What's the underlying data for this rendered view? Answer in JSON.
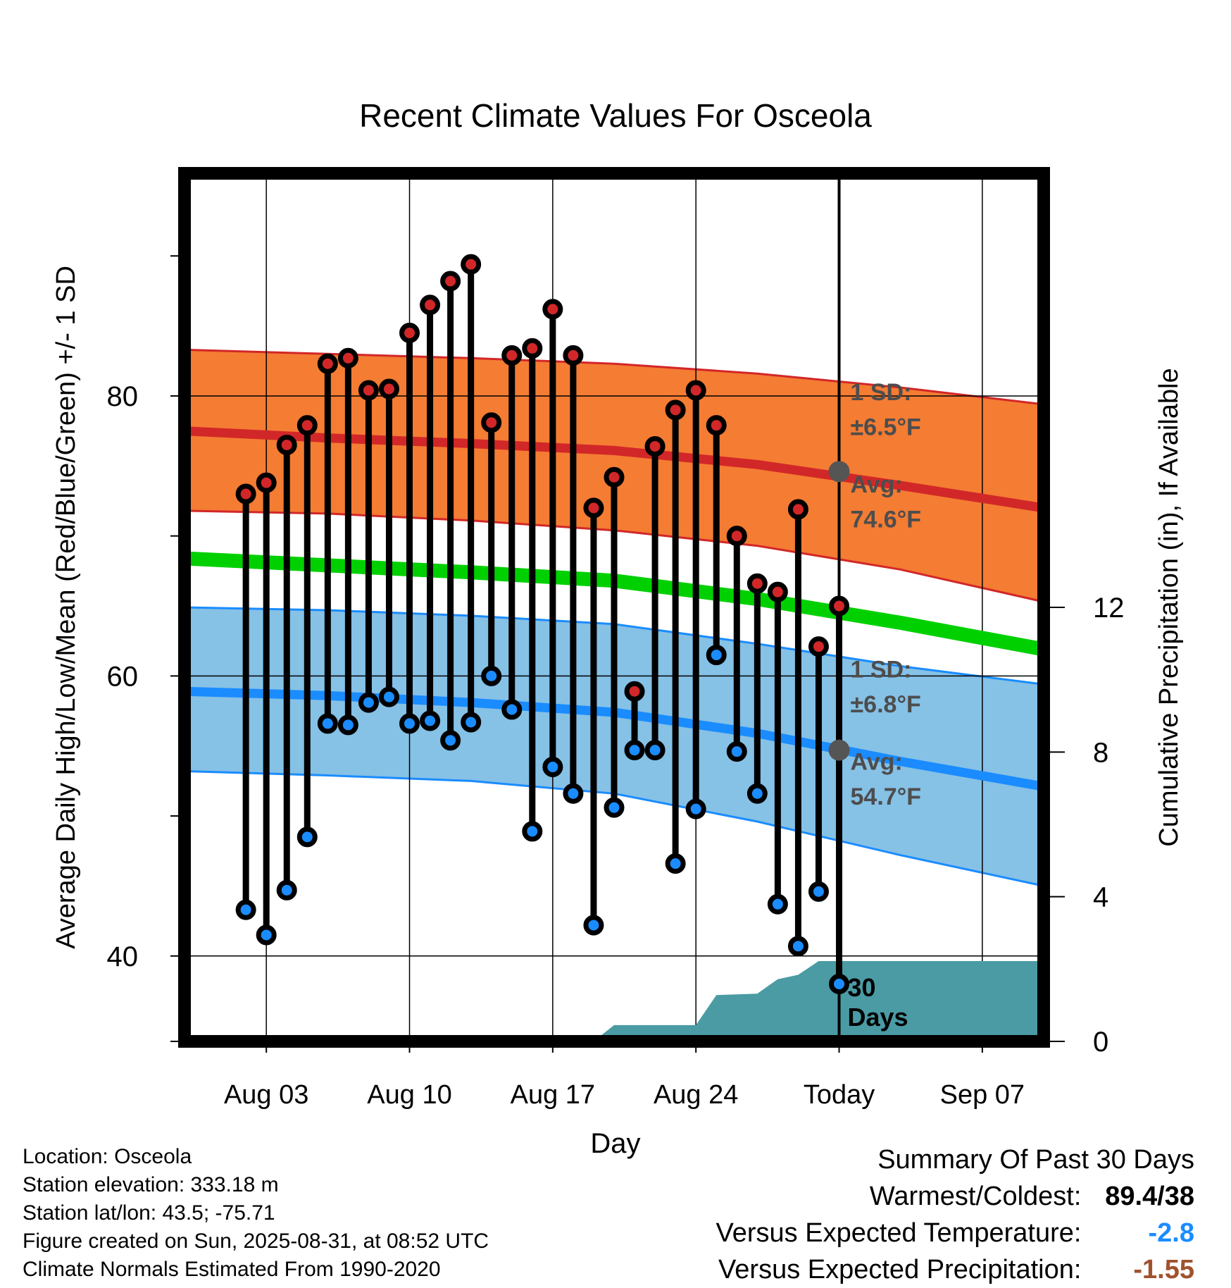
{
  "chart_data": {
    "type": "line",
    "title": "Recent Climate Values For Osceola",
    "xlabel": "Day",
    "ylabel": "Average Daily High/Low/Mean (Red/Blue/Green) +/- 1 SD",
    "ylabel_right": "Cumulative Precipitation (in), If Available",
    "x_range": [
      "2025-07-30",
      "2025-09-10"
    ],
    "ylim": [
      33.9,
      95.9
    ],
    "ylim_right": [
      0,
      24
    ],
    "grid": true,
    "x_ticks": [
      {
        "date": "2025-08-03",
        "label": "Aug 03"
      },
      {
        "date": "2025-08-10",
        "label": "Aug 10"
      },
      {
        "date": "2025-08-17",
        "label": "Aug 17"
      },
      {
        "date": "2025-08-24",
        "label": "Aug 24"
      },
      {
        "date": "2025-08-31",
        "label": "Today"
      },
      {
        "date": "2025-09-07",
        "label": "Sep 07"
      }
    ],
    "y_ticks": [
      {
        "value": 40,
        "label": "40"
      },
      {
        "value": 60,
        "label": "60"
      },
      {
        "value": 80,
        "label": "80"
      }
    ],
    "y_minor_ticks": [
      50,
      70,
      90
    ],
    "y_right_ticks": [
      {
        "value": 0,
        "label": "0"
      },
      {
        "value": 4,
        "label": "4"
      },
      {
        "value": 8,
        "label": "8"
      },
      {
        "value": 12,
        "label": "12"
      }
    ],
    "today": "2025-08-31",
    "daily": [
      {
        "date": "2025-08-02",
        "high": 73.0,
        "low": 43.3
      },
      {
        "date": "2025-08-03",
        "high": 73.8,
        "low": 41.5
      },
      {
        "date": "2025-08-04",
        "high": 76.5,
        "low": 44.7
      },
      {
        "date": "2025-08-05",
        "high": 77.9,
        "low": 48.5
      },
      {
        "date": "2025-08-06",
        "high": 82.3,
        "low": 56.6
      },
      {
        "date": "2025-08-07",
        "high": 82.7,
        "low": 56.5
      },
      {
        "date": "2025-08-08",
        "high": 80.4,
        "low": 58.1
      },
      {
        "date": "2025-08-09",
        "high": 80.5,
        "low": 58.5
      },
      {
        "date": "2025-08-10",
        "high": 84.5,
        "low": 56.6
      },
      {
        "date": "2025-08-11",
        "high": 86.5,
        "low": 56.8
      },
      {
        "date": "2025-08-12",
        "high": 88.2,
        "low": 55.4
      },
      {
        "date": "2025-08-13",
        "high": 89.4,
        "low": 56.7
      },
      {
        "date": "2025-08-14",
        "high": 78.1,
        "low": 60.0
      },
      {
        "date": "2025-08-15",
        "high": 82.9,
        "low": 57.6
      },
      {
        "date": "2025-08-16",
        "high": 83.4,
        "low": 48.9
      },
      {
        "date": "2025-08-17",
        "high": 86.2,
        "low": 53.5
      },
      {
        "date": "2025-08-18",
        "high": 82.9,
        "low": 51.6
      },
      {
        "date": "2025-08-19",
        "high": 72.0,
        "low": 42.2
      },
      {
        "date": "2025-08-20",
        "high": 74.2,
        "low": 50.6
      },
      {
        "date": "2025-08-21",
        "high": 58.9,
        "low": 54.7
      },
      {
        "date": "2025-08-22",
        "high": 76.4,
        "low": 54.7
      },
      {
        "date": "2025-08-23",
        "high": 79.0,
        "low": 46.6
      },
      {
        "date": "2025-08-24",
        "high": 80.4,
        "low": 50.5
      },
      {
        "date": "2025-08-25",
        "high": 77.9,
        "low": 61.5
      },
      {
        "date": "2025-08-26",
        "high": 70.0,
        "low": 54.6
      },
      {
        "date": "2025-08-27",
        "high": 66.6,
        "low": 51.6
      },
      {
        "date": "2025-08-28",
        "high": 66.0,
        "low": 43.7
      },
      {
        "date": "2025-08-29",
        "high": 71.9,
        "low": 40.7
      },
      {
        "date": "2025-08-30",
        "high": 62.1,
        "low": 44.6
      },
      {
        "date": "2025-08-31",
        "high": 65.0,
        "low": 38.0
      }
    ],
    "normals": {
      "dates": [
        "2025-07-30",
        "2025-08-06",
        "2025-08-13",
        "2025-08-20",
        "2025-08-27",
        "2025-09-03",
        "2025-09-10"
      ],
      "high_mean": [
        77.5,
        77.0,
        76.6,
        76.1,
        75.1,
        73.6,
        72.0
      ],
      "high_upper": [
        83.3,
        83.0,
        82.7,
        82.3,
        81.6,
        80.6,
        79.4
      ],
      "high_lower": [
        71.8,
        71.6,
        71.1,
        70.4,
        69.3,
        67.6,
        65.3
      ],
      "mean": [
        68.4,
        67.9,
        67.4,
        66.8,
        65.5,
        63.8,
        61.9
      ],
      "low_mean": [
        58.9,
        58.6,
        58.1,
        57.4,
        55.9,
        53.9,
        52.1
      ],
      "low_upper": [
        64.9,
        64.7,
        64.3,
        63.7,
        62.3,
        60.7,
        59.4
      ],
      "low_lower": [
        53.2,
        52.9,
        52.5,
        51.6,
        49.6,
        47.2,
        45.0
      ]
    },
    "precip_cumulative": {
      "dates": [
        "2025-08-19",
        "2025-08-20",
        "2025-08-23",
        "2025-08-24",
        "2025-08-25",
        "2025-08-27",
        "2025-08-28",
        "2025-08-29",
        "2025-08-30",
        "2025-09-10"
      ],
      "values": [
        0.0,
        0.45,
        0.45,
        0.45,
        1.28,
        1.32,
        1.72,
        1.84,
        2.22,
        2.22
      ]
    },
    "annotations": {
      "high_sd": {
        "line1": "1 SD:",
        "line2": "±6.5°F"
      },
      "high_avg": {
        "line1": "Avg:",
        "line2": "74.6°F",
        "value": 74.6
      },
      "low_sd": {
        "line1": "1 SD:",
        "line2": "±6.8°F"
      },
      "low_avg": {
        "line1": "Avg:",
        "line2": "54.7°F",
        "value": 54.7
      },
      "precip_days": {
        "line1": "30",
        "line2": "Days"
      }
    }
  },
  "colors": {
    "high_band": "#f47c33",
    "high_line": "#d22728",
    "low_band": "#86c1e6",
    "low_line": "#1a8cff",
    "mean_line": "#00d000",
    "precip_fill": "#4a9ba4",
    "high_dot": "#d22728",
    "low_dot": "#1a8cff",
    "annotation_text": "#4d4d4d"
  },
  "footer": {
    "location": "Location: Osceola",
    "elevation": "Station elevation: 333.18 m",
    "latlon": "Station lat/lon: 43.5; -75.71",
    "created": "Figure created on Sun, 2025-08-31, at 08:52 UTC",
    "normals": "Climate Normals Estimated From 1990-2020"
  },
  "summary": {
    "title": "Summary Of Past 30 Days",
    "warm_cold_label": "Warmest/Coldest:",
    "warm_cold_value": "89.4/38",
    "temp_label": "Versus Expected Temperature:",
    "temp_value": "-2.8",
    "temp_color": "#1a8cff",
    "precip_label": "Versus Expected Precipitation:",
    "precip_value": "-1.55",
    "precip_color": "#a0522d"
  }
}
